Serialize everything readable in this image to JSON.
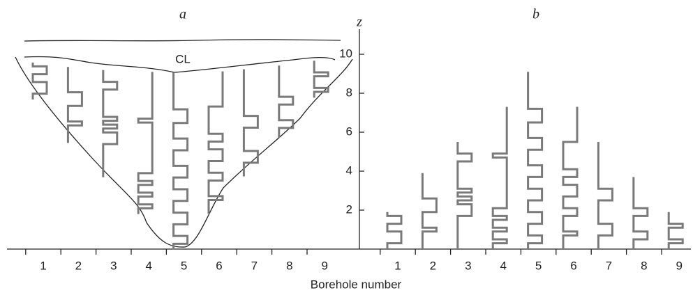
{
  "chart_data": {
    "type": "borehole-steps",
    "panels": [
      "a",
      "b"
    ],
    "surface_label": "CL",
    "y_label": "z",
    "x_label": "Borehole number",
    "categories": [
      "1",
      "2",
      "3",
      "4",
      "5",
      "6",
      "7",
      "8",
      "9"
    ],
    "ylim": [
      0,
      10
    ],
    "yticks": [
      2,
      4,
      6,
      8,
      10
    ],
    "color": "#7a7a7a",
    "heights": [
      1.9,
      3.9,
      5.5,
      7.3,
      9.1,
      7.3,
      5.5,
      3.7,
      1.9
    ],
    "switches": [
      [
        0.3,
        0.9,
        1.3,
        1.7
      ],
      [
        0.9,
        1.1,
        1.9,
        2.6
      ],
      [
        1.7,
        2.3,
        2.5,
        2.7,
        2.9,
        3.1,
        4.5,
        4.9
      ],
      [
        0.3,
        0.5,
        0.9,
        1.1,
        1.5,
        1.7,
        2.1,
        4.7,
        4.9
      ],
      [
        0.3,
        0.7,
        1.3,
        1.9,
        2.5,
        3.1,
        3.7,
        4.3,
        5.1,
        5.7,
        6.5,
        7.2
      ],
      [
        0.7,
        0.9,
        1.7,
        2.1,
        2.7,
        3.3,
        3.7,
        4.1,
        5.5
      ],
      [
        0.7,
        1.3,
        2.5,
        3.1
      ],
      [
        0.5,
        0.9,
        1.7,
        2.1
      ],
      [
        0.3,
        0.5,
        1.1,
        1.3
      ]
    ]
  }
}
